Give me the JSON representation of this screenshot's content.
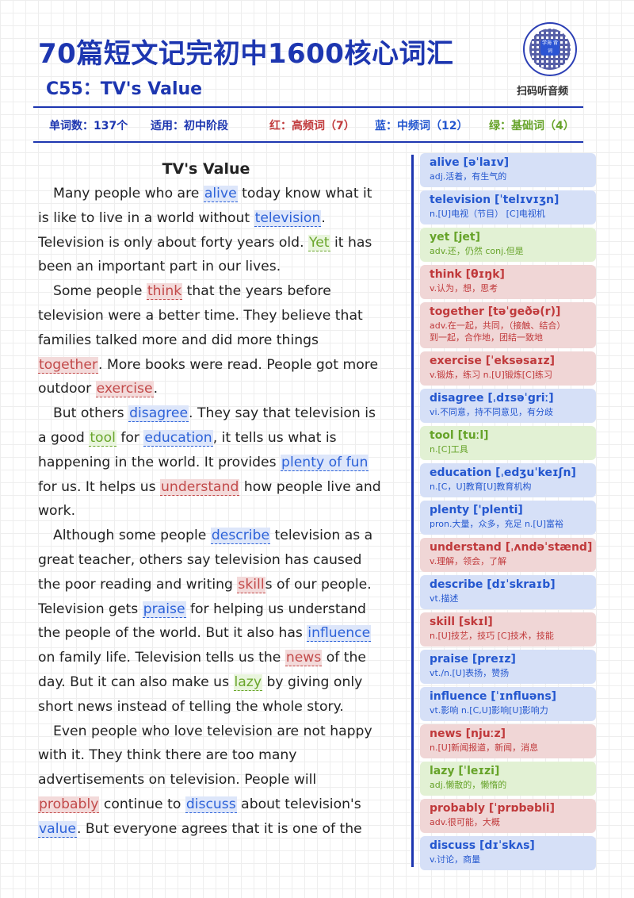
{
  "header": {
    "title": "70篇短文记完初中1600核心词汇",
    "subtitle": "C55：TV's Value",
    "qr_caption": "扫码听音频",
    "qr_center": "学海 背词"
  },
  "stats": {
    "word_count": "单词数：137个",
    "level": "适用：初中阶段",
    "red": "红：高频词（7）",
    "blue": "蓝：中频词（12）",
    "green": "绿：基础词（4）"
  },
  "colors": {
    "primary": "#1d36b0",
    "red": "#c0393b",
    "blue": "#2457cf",
    "green": "#66a329"
  },
  "article": {
    "title": "TV's Value",
    "lines": [
      {
        "indent": true,
        "segs": [
          {
            "t": "Many people who are "
          },
          {
            "t": "alive",
            "c": "blue"
          },
          {
            "t": " today know what it"
          }
        ]
      },
      {
        "segs": [
          {
            "t": "is like to live in a world without "
          },
          {
            "t": "television",
            "c": "blue"
          },
          {
            "t": "."
          }
        ]
      },
      {
        "segs": [
          {
            "t": "Television is only about forty years old. "
          },
          {
            "t": "Yet",
            "c": "green"
          },
          {
            "t": " it has"
          }
        ]
      },
      {
        "segs": [
          {
            "t": "been an important part in our lives."
          }
        ]
      },
      {
        "indent": true,
        "segs": [
          {
            "t": "Some people "
          },
          {
            "t": "think",
            "c": "red"
          },
          {
            "t": " that the years before"
          }
        ]
      },
      {
        "segs": [
          {
            "t": "television were a better time. They believe that"
          }
        ]
      },
      {
        "segs": [
          {
            "t": "families talked more and did more things"
          }
        ]
      },
      {
        "segs": [
          {
            "t": "together",
            "c": "red"
          },
          {
            "t": ". More books were read. People got more"
          }
        ]
      },
      {
        "segs": [
          {
            "t": "outdoor "
          },
          {
            "t": "exercise",
            "c": "red"
          },
          {
            "t": "."
          }
        ]
      },
      {
        "indent": true,
        "segs": [
          {
            "t": "But others "
          },
          {
            "t": "disagree",
            "c": "blue"
          },
          {
            "t": ". They say that television is"
          }
        ]
      },
      {
        "segs": [
          {
            "t": "a good "
          },
          {
            "t": "tool",
            "c": "green"
          },
          {
            "t": " for "
          },
          {
            "t": "education",
            "c": "blue"
          },
          {
            "t": ", it tells us what is"
          }
        ]
      },
      {
        "segs": [
          {
            "t": "happening in the world. It provides "
          },
          {
            "t": "plenty of fun",
            "c": "blue"
          }
        ]
      },
      {
        "segs": [
          {
            "t": "for us. It helps us "
          },
          {
            "t": "understand",
            "c": "red"
          },
          {
            "t": " how people live and"
          }
        ]
      },
      {
        "segs": [
          {
            "t": "work."
          }
        ]
      },
      {
        "indent": true,
        "segs": [
          {
            "t": "Although some people "
          },
          {
            "t": "describe",
            "c": "blue"
          },
          {
            "t": " television as a"
          }
        ]
      },
      {
        "segs": [
          {
            "t": "great teacher, others say television has caused"
          }
        ]
      },
      {
        "segs": [
          {
            "t": "the poor reading and writing "
          },
          {
            "t": "skill",
            "c": "red"
          },
          {
            "t": "s of our people."
          }
        ]
      },
      {
        "segs": [
          {
            "t": "Television gets "
          },
          {
            "t": "praise",
            "c": "blue"
          },
          {
            "t": " for helping us understand"
          }
        ]
      },
      {
        "segs": [
          {
            "t": "the people of the world. But it also has "
          },
          {
            "t": "influence",
            "c": "blue"
          }
        ]
      },
      {
        "segs": [
          {
            "t": "on family life. Television tells us the "
          },
          {
            "t": "news",
            "c": "red"
          },
          {
            "t": " of the"
          }
        ]
      },
      {
        "segs": [
          {
            "t": "day. But it can also make us "
          },
          {
            "t": "lazy",
            "c": "green"
          },
          {
            "t": " by giving only"
          }
        ]
      },
      {
        "segs": [
          {
            "t": "short news instead of telling the whole story."
          }
        ]
      },
      {
        "indent": true,
        "segs": [
          {
            "t": "Even people who love television are not happy"
          }
        ]
      },
      {
        "segs": [
          {
            "t": "with it. They think there are too many"
          }
        ]
      },
      {
        "segs": [
          {
            "t": "advertisements on television. People will"
          }
        ]
      },
      {
        "segs": [
          {
            "t": "probably",
            "c": "red"
          },
          {
            "t": " continue to "
          },
          {
            "t": "discuss",
            "c": "blue"
          },
          {
            "t": " about television's"
          }
        ]
      },
      {
        "segs": [
          {
            "t": "value",
            "c": "blue"
          },
          {
            "t": ". But everyone agrees that it is one of the"
          }
        ]
      }
    ]
  },
  "glossary": [
    {
      "word": "alive [əˈlaɪv]",
      "def": [
        "adj.活着，有生气的"
      ],
      "color": "blue"
    },
    {
      "word": "television [ˈtelɪvɪʒn]",
      "def": [
        "n.[U]电视（节目） [C]电视机"
      ],
      "color": "blue"
    },
    {
      "word": "yet [jet]",
      "def": [
        "adv.还，仍然 conj.但是"
      ],
      "color": "green"
    },
    {
      "word": "think [θɪŋk]",
      "def": [
        "v.认为，想，思考"
      ],
      "color": "red"
    },
    {
      "word": "together [təˈgeðə(r)]",
      "def": [
        "adv.在一起，共同，（接触、结合）",
        "到一起，合作地，团结一致地"
      ],
      "color": "red"
    },
    {
      "word": "exercise [ˈeksəsaɪz]",
      "def": [
        "v.锻炼，练习 n.[U]锻炼[C]练习"
      ],
      "color": "red"
    },
    {
      "word": "disagree [ˌdɪsəˈgriː]",
      "def": [
        "vi.不同意，持不同意见，有分歧"
      ],
      "color": "blue"
    },
    {
      "word": "tool [tuːl]",
      "def": [
        "n.[C]工具"
      ],
      "color": "green"
    },
    {
      "word": "education [ˌedʒuˈkeɪʃn]",
      "def": [
        "n.[C，U]教育[U]教育机构"
      ],
      "color": "blue"
    },
    {
      "word": "plenty ['plenti]",
      "def": [
        "pron.大量，众多，充足 n.[U]富裕"
      ],
      "color": "blue"
    },
    {
      "word": "understand [ˌʌndəˈstænd]",
      "def": [
        "v.理解，领会，了解"
      ],
      "color": "red"
    },
    {
      "word": "describe [dɪˈskraɪb]",
      "def": [
        "vt.描述"
      ],
      "color": "blue"
    },
    {
      "word": "skill [skɪl]",
      "def": [
        "n.[U]技艺，技巧 [C]技术，技能"
      ],
      "color": "red"
    },
    {
      "word": "praise [preɪz]",
      "def": [
        "vt./n.[U]表扬，赞扬"
      ],
      "color": "blue"
    },
    {
      "word": "influence [ˈɪnfluəns]",
      "def": [
        "vt.影响 n.[C,U]影响[U]影响力"
      ],
      "color": "blue"
    },
    {
      "word": "news [njuːz]",
      "def": [
        "n.[U]新闻报道，新闻，消息"
      ],
      "color": "red"
    },
    {
      "word": "lazy [ˈleɪzi]",
      "def": [
        "adj.懒散的，懒惰的"
      ],
      "color": "green"
    },
    {
      "word": "probably [ˈprɒbəbli]",
      "def": [
        "adv.很可能，大概"
      ],
      "color": "red"
    },
    {
      "word": "discuss [dɪˈskʌs]",
      "def": [
        "v.讨论，商量"
      ],
      "color": "blue"
    }
  ]
}
